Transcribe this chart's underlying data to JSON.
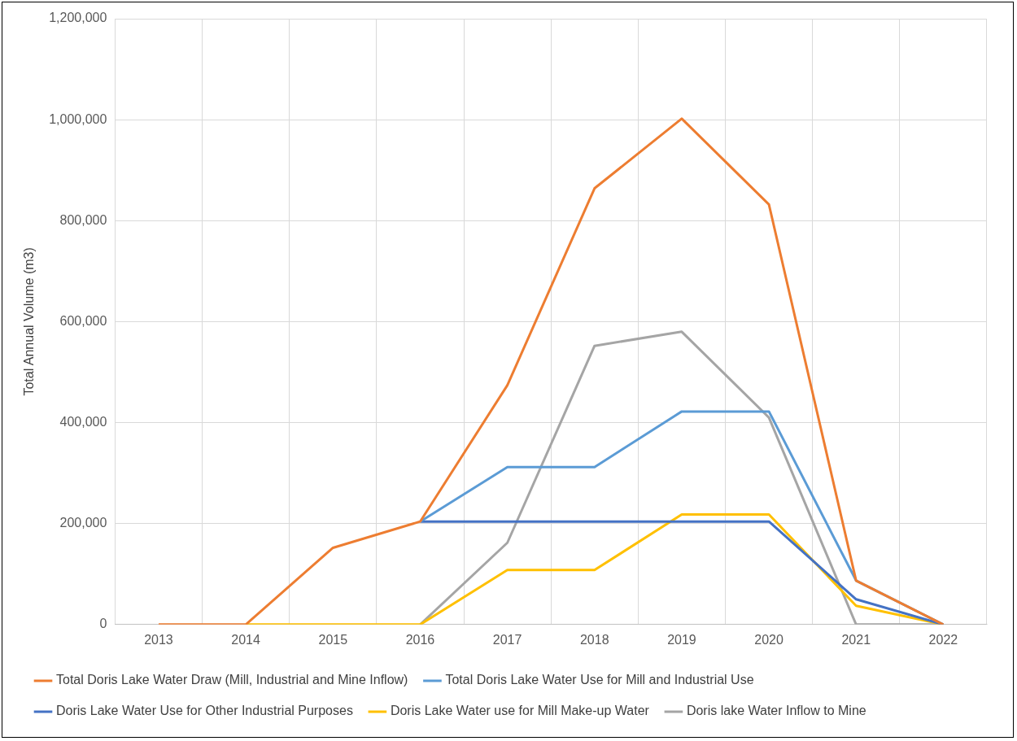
{
  "chart_data": {
    "type": "line",
    "ylabel": "Total Annual Volume (m3)",
    "categories": [
      "2013",
      "2014",
      "2015",
      "2016",
      "2017",
      "2018",
      "2019",
      "2020",
      "2021",
      "2022"
    ],
    "series": [
      {
        "name": "Doris lake Water Inflow to Mine",
        "color": "#a5a5a5",
        "values": [
          null,
          null,
          null,
          0,
          162000,
          552000,
          580000,
          410000,
          0,
          0
        ]
      },
      {
        "name": "Doris Lake Water use for Mill Make-up Water",
        "color": "#ffc000",
        "values": [
          null,
          0,
          0,
          0,
          108000,
          108000,
          218000,
          218000,
          37000,
          0
        ]
      },
      {
        "name": "Doris Lake Water Use for Other Industrial Purposes",
        "color": "#4472c4",
        "values": [
          null,
          null,
          null,
          204000,
          204000,
          204000,
          204000,
          204000,
          50000,
          0
        ]
      },
      {
        "name": "Total Doris Lake Water Use for Mill and Industrial Use",
        "color": "#5b9bd5",
        "values": [
          null,
          null,
          null,
          204000,
          312000,
          312000,
          422000,
          422000,
          87000,
          0
        ]
      },
      {
        "name": "Total Doris Lake Water Draw (Mill, Industrial and Mine Inflow)",
        "color": "#ed7d31",
        "values": [
          0,
          0,
          152000,
          204000,
          474000,
          864000,
          1002000,
          832000,
          87000,
          0
        ]
      }
    ],
    "ylim": [
      0,
      1200000
    ],
    "yticks": [
      0,
      {
        "value": 200000,
        "label": "200,000"
      },
      {
        "value": 400000,
        "label": "400,000"
      },
      {
        "value": 600000,
        "label": "600,000"
      },
      {
        "value": 800000,
        "label": "800,000"
      },
      {
        "value": 1000000,
        "label": "1,000,000"
      },
      {
        "value": 1200000,
        "label": "1,200,000"
      }
    ],
    "grid": true,
    "legend": "bottom",
    "marker": "none",
    "line_style": "solid"
  }
}
